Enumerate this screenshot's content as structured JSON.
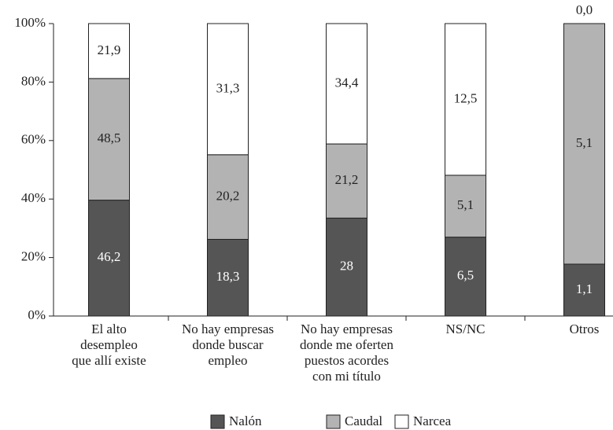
{
  "chart_data": {
    "type": "bar",
    "stacking": "percent",
    "categories": [
      "El alto\ndesempleo\nque allí existe",
      "No hay empresas\ndonde buscar\nempleo",
      "No hay empresas\ndonde me oferten\npuestos acordes\ncon mi título",
      "NS/NC",
      "Otros"
    ],
    "series": [
      {
        "name": "Nalón",
        "color": "#555555",
        "values": [
          46.2,
          18.3,
          28,
          6.5,
          1.1
        ],
        "value_labels": [
          "46,2",
          "18,3",
          "28",
          "6,5",
          "1,1"
        ]
      },
      {
        "name": "Caudal",
        "color": "#b3b3b3",
        "values": [
          48.5,
          20.2,
          21.2,
          5.1,
          5.1
        ],
        "value_labels": [
          "48,5",
          "20,2",
          "21,2",
          "5,1",
          "5,1"
        ]
      },
      {
        "name": "Narcea",
        "color": "#ffffff",
        "values": [
          21.9,
          31.3,
          34.4,
          12.5,
          0.0
        ],
        "value_labels": [
          "21,9",
          "31,3",
          "34,4",
          "12,5",
          "0,0"
        ]
      }
    ],
    "ylim": [
      0,
      100
    ],
    "yticks": [
      {
        "value": 0,
        "label": "0%"
      },
      {
        "value": 20,
        "label": "20%"
      },
      {
        "value": 40,
        "label": "40%"
      },
      {
        "value": 60,
        "label": "60%"
      },
      {
        "value": 80,
        "label": "80%"
      },
      {
        "value": 100,
        "label": "100%"
      }
    ],
    "legend": "bottom"
  }
}
